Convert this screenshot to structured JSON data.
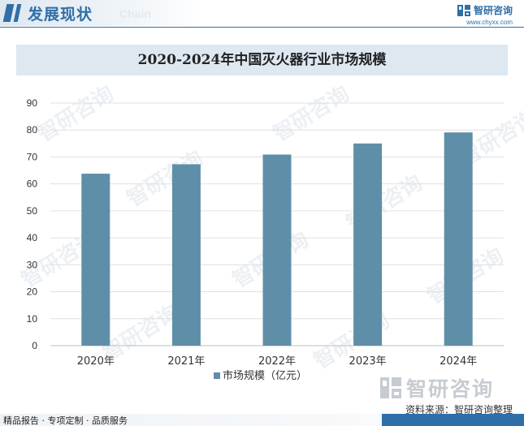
{
  "header": {
    "title": "发展现状",
    "subtitle": "Chain",
    "brand_name": "智研咨询",
    "brand_url": "www.chyxx.com"
  },
  "colors": {
    "accent": "#2f6fa8",
    "bar": "#5f8fa8",
    "banner": "#dde8f1"
  },
  "chart_data": {
    "type": "bar",
    "title": "2020-2024年中国灭火器行业市场规模",
    "categories": [
      "2020年",
      "2021年",
      "2022年",
      "2023年",
      "2024年"
    ],
    "series": [
      {
        "name": "市场规模（亿元）",
        "values": [
          63.8,
          67.3,
          70.9,
          75.0,
          79.1
        ]
      }
    ],
    "ylim": [
      0,
      90
    ],
    "yticks": [
      0,
      10,
      20,
      30,
      40,
      50,
      60,
      70,
      80,
      90
    ],
    "xlabel": "",
    "ylabel": "",
    "grid": true,
    "legend": "bottom"
  },
  "watermark": {
    "brand": "智研咨询"
  },
  "footer": {
    "brand": "智研咨询",
    "source": "资料来源：智研咨询整理",
    "tagline": "精品报告 · 专项定制 · 品质服务"
  }
}
